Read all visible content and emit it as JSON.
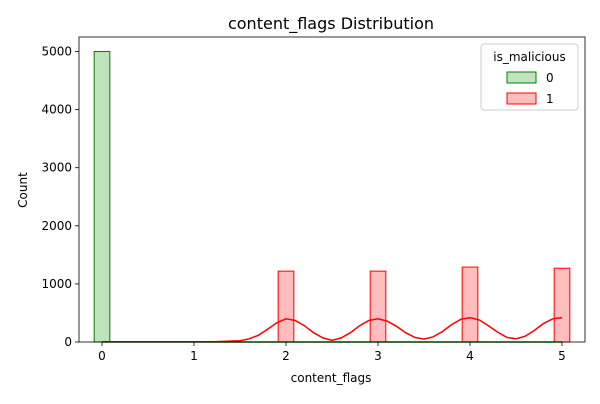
{
  "chart_data": {
    "type": "bar",
    "title": "content_flags Distribution",
    "xlabel": "content_flags",
    "ylabel": "Count",
    "xlim": [
      -0.25,
      5.25
    ],
    "ylim": [
      0,
      5250
    ],
    "xticks": [
      0,
      1,
      2,
      3,
      4,
      5
    ],
    "yticks": [
      0,
      1000,
      2000,
      3000,
      4000,
      5000
    ],
    "bin_width": 0.17,
    "legend": {
      "title": "is_malicious",
      "placement": "top-right",
      "entries": [
        "0",
        "1"
      ]
    },
    "series": [
      {
        "name": "0",
        "color": "#008000",
        "fill": "#bfe3bf",
        "bars": [
          {
            "x": 0,
            "value": 5000
          }
        ],
        "kde": [
          [
            0,
            0
          ],
          [
            5,
            0
          ]
        ]
      },
      {
        "name": "1",
        "color": "#ff0000",
        "fill": "#ffbdbd",
        "bars": [
          {
            "x": 2,
            "value": 1220
          },
          {
            "x": 3,
            "value": 1220
          },
          {
            "x": 4,
            "value": 1290
          },
          {
            "x": 5,
            "value": 1270
          }
        ],
        "kde": [
          [
            0,
            5
          ],
          [
            0.5,
            5
          ],
          [
            1,
            5
          ],
          [
            1.25,
            7
          ],
          [
            1.5,
            22
          ],
          [
            1.6,
            55
          ],
          [
            1.7,
            115
          ],
          [
            1.8,
            220
          ],
          [
            1.9,
            330
          ],
          [
            2,
            400
          ],
          [
            2.1,
            370
          ],
          [
            2.2,
            280
          ],
          [
            2.3,
            160
          ],
          [
            2.4,
            70
          ],
          [
            2.5,
            30
          ],
          [
            2.6,
            70
          ],
          [
            2.7,
            160
          ],
          [
            2.8,
            280
          ],
          [
            2.9,
            370
          ],
          [
            3,
            400
          ],
          [
            3.1,
            360
          ],
          [
            3.2,
            270
          ],
          [
            3.3,
            160
          ],
          [
            3.4,
            80
          ],
          [
            3.5,
            50
          ],
          [
            3.6,
            90
          ],
          [
            3.7,
            180
          ],
          [
            3.8,
            300
          ],
          [
            3.9,
            390
          ],
          [
            4,
            420
          ],
          [
            4.1,
            380
          ],
          [
            4.2,
            280
          ],
          [
            4.3,
            170
          ],
          [
            4.4,
            80
          ],
          [
            4.5,
            55
          ],
          [
            4.6,
            100
          ],
          [
            4.7,
            200
          ],
          [
            4.8,
            320
          ],
          [
            4.9,
            400
          ],
          [
            5,
            420
          ]
        ]
      }
    ]
  }
}
